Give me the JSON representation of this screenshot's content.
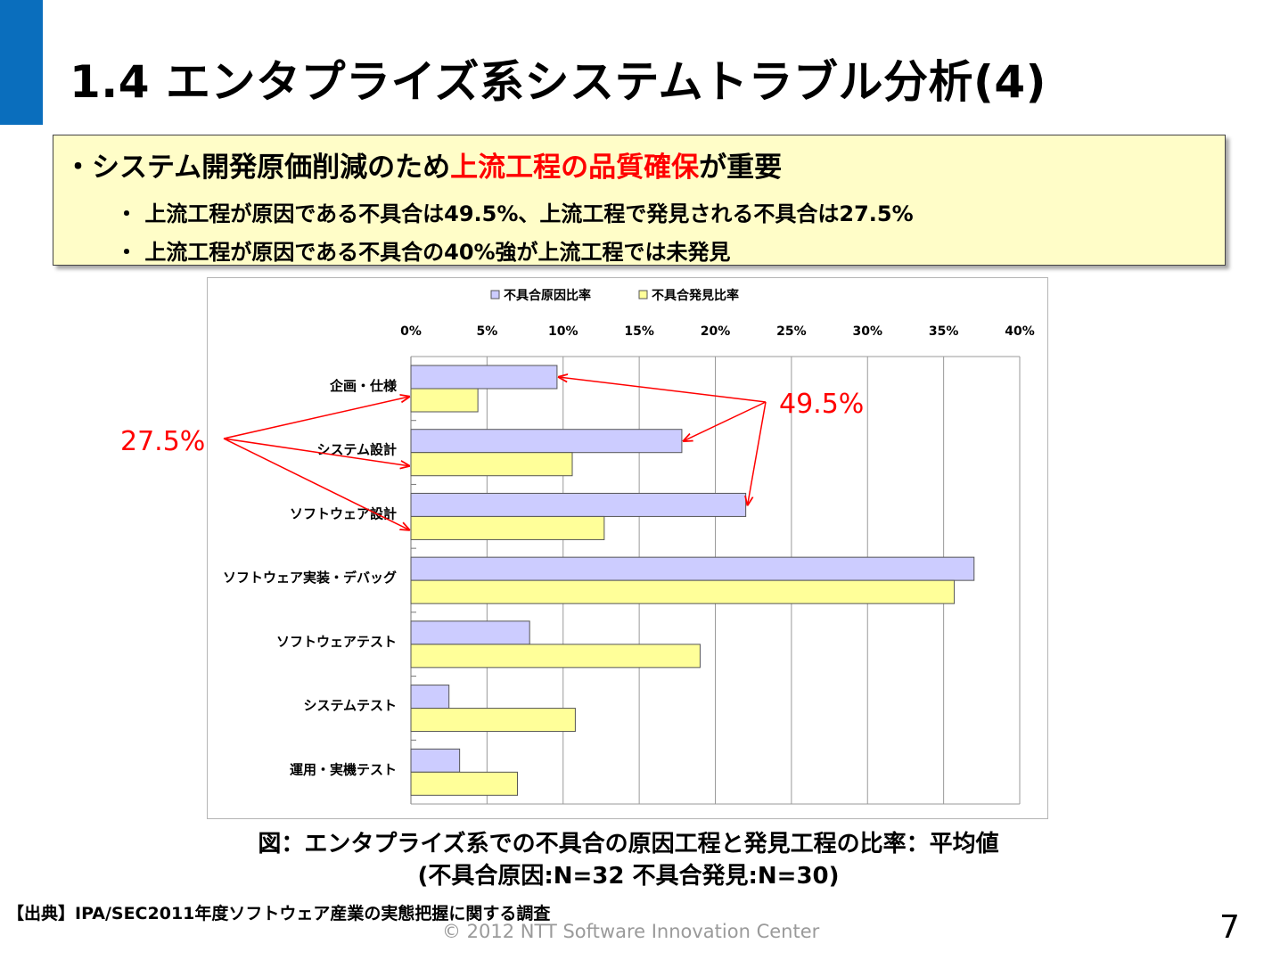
{
  "slide": {
    "title": "1.4 エンタプライズ系システムトラブル分析(4)",
    "page_number": "7",
    "copyright": "© 2012  NTT Software Innovation Center",
    "accent_color": "#0a6ebd"
  },
  "summary": {
    "main_bullet": "・",
    "main_prefix": "システム開発原価削減のため",
    "main_highlight": "上流工程の品質確保",
    "main_suffix": "が重要",
    "sub_bullets": [
      "・ 上流工程が原因である不具合は49.5%、上流工程で発見される不具合は27.5%",
      "・ 上流工程が原因である不具合の40%強が上流工程では未発見"
    ]
  },
  "figure": {
    "caption_line1": "図：エンタプライズ系での不具合の原因工程と発見工程の比率：平均値",
    "caption_line2": "(不具合原因:N=32 不具合発見:N=30)",
    "source": "【出典】IPA/SEC2011年度ソフトウェア産業の実態把握に関する調査"
  },
  "chart_data": {
    "type": "bar",
    "orientation": "horizontal",
    "categories": [
      "企画・仕様",
      "システム設計",
      "ソフトウェア設計",
      "ソフトウェア実装・デバッグ",
      "ソフトウェアテスト",
      "システムテスト",
      "運用・実機テスト"
    ],
    "series": [
      {
        "name": "不具合原因比率",
        "values": [
          9.6,
          17.8,
          22.0,
          37.0,
          7.8,
          2.5,
          3.2
        ],
        "color": "#ccccff"
      },
      {
        "name": "不具合発見比率",
        "values": [
          4.4,
          10.6,
          12.7,
          35.7,
          19.0,
          10.8,
          7.0
        ],
        "color": "#ffff99"
      }
    ],
    "xlim": [
      0,
      40
    ],
    "xticks": [
      0,
      5,
      10,
      15,
      20,
      25,
      30,
      35,
      40
    ],
    "tick_format": "%",
    "xaxis_position": "top",
    "grid": true,
    "legend_position": "top",
    "annotations": [
      {
        "text": "49.5%",
        "color": "#ff0000",
        "points_to_series": "不具合原因比率",
        "points_to_categories": [
          "企画・仕様",
          "システム設計",
          "ソフトウェア設計"
        ]
      },
      {
        "text": "27.5%",
        "color": "#ff0000",
        "points_to_series": "不具合発見比率",
        "points_to_categories": [
          "企画・仕様",
          "システム設計",
          "ソフトウェア設計"
        ]
      }
    ]
  }
}
